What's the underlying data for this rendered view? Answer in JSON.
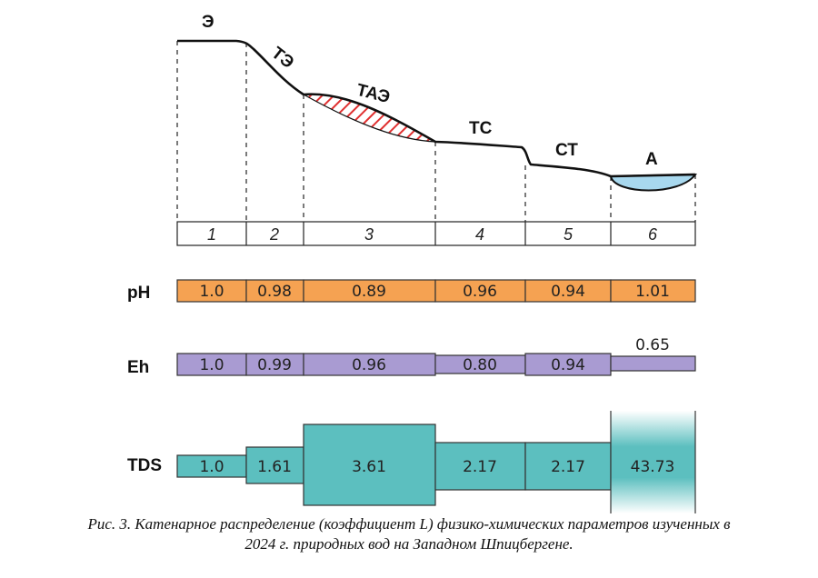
{
  "zones": [
    {
      "code": "Э"
    },
    {
      "code": "ТЭ"
    },
    {
      "code": "ТАЭ"
    },
    {
      "code": "ТС"
    },
    {
      "code": "СТ"
    },
    {
      "code": "А"
    }
  ],
  "zone_numbers": [
    "1",
    "2",
    "3",
    "4",
    "5",
    "6"
  ],
  "rows": [
    {
      "key": "ph",
      "label": "pH",
      "color": "#f5a252",
      "values": [
        "1.0",
        "0.98",
        "0.89",
        "0.96",
        "0.94",
        "1.01"
      ],
      "numeric": [
        1.0,
        0.98,
        0.89,
        0.96,
        0.94,
        1.01
      ]
    },
    {
      "key": "eh",
      "label": "Eh",
      "color": "#a99bd2",
      "values": [
        "1.0",
        "0.99",
        "0.96",
        "0.80",
        "0.94",
        "0.65"
      ],
      "numeric": [
        1.0,
        0.99,
        0.96,
        0.8,
        0.94,
        0.65
      ]
    },
    {
      "key": "tds",
      "label": "TDS",
      "color": "#5cbfbf",
      "values": [
        "1.0",
        "1.61",
        "3.61",
        "2.17",
        "2.17",
        "43.73"
      ],
      "numeric": [
        1.0,
        1.61,
        3.61,
        2.17,
        2.17,
        43.73
      ]
    }
  ],
  "caption": {
    "line1": "Рис. 3. Катенарное распределение (коэффициент L) физико-химических параметров изученных в",
    "line2": "2024 г. природных вод на Западном Шпицбергене."
  },
  "colors": {
    "water": "#a8d8ee",
    "hatch": "#e03030",
    "profile": "#111111"
  }
}
